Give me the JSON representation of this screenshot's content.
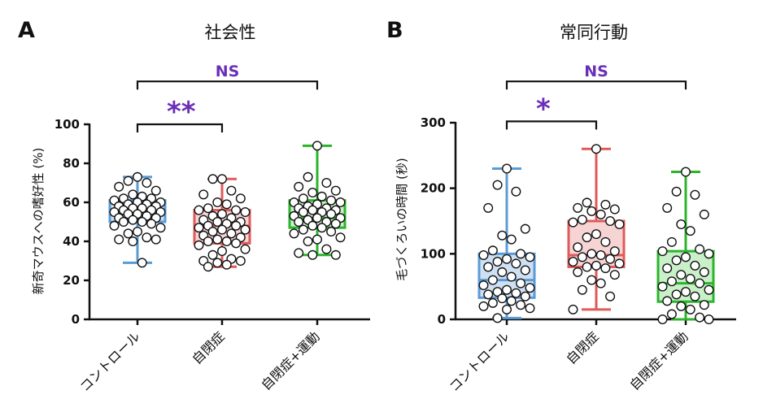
{
  "chart_data": [
    {
      "type": "box",
      "panel": "A",
      "title": "社会性",
      "ylabel": "新奇マウスへの嗜好性 (%)",
      "ylim": [
        0,
        100
      ],
      "yticks": [
        "0",
        "20",
        "40",
        "60",
        "80",
        "100"
      ],
      "categories": [
        "コントロール",
        "自閉症",
        "自閉症+運動"
      ],
      "colors": [
        "#5b9bd5",
        "#e05a5a",
        "#2bb52b"
      ],
      "fills": [
        "#cfe0f3",
        "#f6d4d4",
        "#c9f0c9"
      ],
      "boxes": [
        {
          "min": 29,
          "q1": 50,
          "median": 55,
          "q3": 61,
          "max": 73
        },
        {
          "min": 27,
          "q1": 39,
          "median": 48,
          "q3": 56,
          "max": 72
        },
        {
          "min": 33,
          "q1": 47,
          "median": 52,
          "q3": 61,
          "max": 89
        }
      ],
      "points": [
        [
          73,
          71,
          70,
          68,
          66,
          64,
          63,
          62,
          62,
          61,
          60,
          60,
          59,
          59,
          58,
          58,
          57,
          57,
          56,
          56,
          55,
          55,
          54,
          54,
          53,
          52,
          52,
          51,
          50,
          50,
          49,
          48,
          47,
          45,
          44,
          42,
          41,
          41,
          40,
          29
        ],
        [
          72,
          72,
          66,
          64,
          62,
          60,
          59,
          57,
          56,
          56,
          55,
          54,
          53,
          52,
          51,
          50,
          50,
          49,
          48,
          48,
          47,
          46,
          46,
          45,
          44,
          43,
          42,
          41,
          40,
          40,
          39,
          38,
          36,
          35,
          33,
          31,
          30,
          30,
          29,
          28,
          27
        ],
        [
          89,
          73,
          70,
          68,
          66,
          65,
          63,
          62,
          61,
          60,
          60,
          59,
          58,
          57,
          57,
          56,
          56,
          55,
          55,
          54,
          53,
          52,
          52,
          51,
          50,
          50,
          49,
          48,
          47,
          46,
          45,
          44,
          42,
          41,
          40,
          36,
          34,
          33,
          33
        ]
      ],
      "brackets": [
        {
          "from": 0,
          "to": 1,
          "label": "**",
          "level": 100
        },
        {
          "from": 0,
          "to": 2,
          "label": "NS",
          "level": 122
        }
      ]
    },
    {
      "type": "box",
      "panel": "B",
      "title": "常同行動",
      "ylabel": "毛づくろいの時間 (秒)",
      "ylim": [
        0,
        300
      ],
      "yticks": [
        "0",
        "100",
        "200",
        "300"
      ],
      "categories": [
        "コントロール",
        "自閉症",
        "自閉症+運動"
      ],
      "colors": [
        "#5b9bd5",
        "#e05a5a",
        "#2bb52b"
      ],
      "fills": [
        "#cfe0f3",
        "#f6d4d4",
        "#c9f0c9"
      ],
      "boxes": [
        {
          "min": 2,
          "q1": 33,
          "median": 60,
          "q3": 100,
          "max": 230
        },
        {
          "min": 15,
          "q1": 80,
          "median": 98,
          "q3": 150,
          "max": 260
        },
        {
          "min": 0,
          "q1": 27,
          "median": 55,
          "q3": 104,
          "max": 225
        }
      ],
      "points": [
        [
          230,
          205,
          195,
          170,
          138,
          128,
          122,
          105,
          100,
          98,
          95,
          92,
          88,
          85,
          80,
          75,
          72,
          65,
          60,
          55,
          52,
          48,
          45,
          42,
          40,
          38,
          35,
          32,
          28,
          25,
          22,
          20,
          17,
          15,
          2
        ],
        [
          260,
          178,
          175,
          170,
          168,
          165,
          160,
          152,
          150,
          148,
          145,
          130,
          125,
          118,
          110,
          104,
          100,
          98,
          95,
          92,
          88,
          85,
          82,
          80,
          78,
          72,
          68,
          60,
          55,
          45,
          35,
          15
        ],
        [
          225,
          195,
          190,
          170,
          160,
          145,
          135,
          118,
          107,
          104,
          100,
          95,
          90,
          82,
          78,
          72,
          68,
          62,
          58,
          55,
          50,
          45,
          42,
          38,
          35,
          28,
          22,
          20,
          15,
          8,
          3,
          0,
          0
        ]
      ],
      "brackets": [
        {
          "from": 0,
          "to": 1,
          "label": "*",
          "level": 302
        },
        {
          "from": 0,
          "to": 2,
          "label": "NS",
          "level": 363
        }
      ]
    }
  ]
}
